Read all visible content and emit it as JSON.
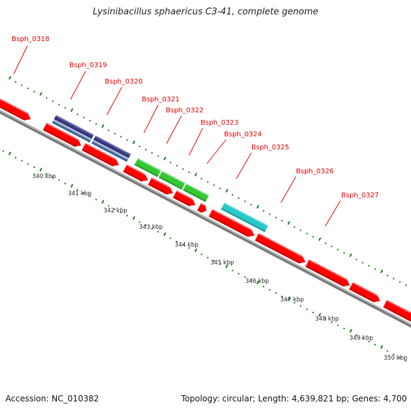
{
  "title": "Lysinibacillus sphaericus C3-41, complete genome",
  "footer": {
    "accession": "Accession: NC_010382",
    "summary": "Topology: circular; Length: 4,639,821 bp; Genes: 4,700"
  },
  "colors": {
    "cds": "#ff0000",
    "cds_dark": "#a00000",
    "track_purple": "#3c3c8c",
    "track_blue": "#5078b4",
    "track_green": "#32c832",
    "track_cyan": "#28c8c8",
    "backbone": "#777777",
    "ticks": "#1a7a1a",
    "label": "#e00000"
  },
  "gene_labels": [
    "Bsph_0318",
    "Bsph_0319",
    "Bsph_0320",
    "Bsph_0321",
    "Bsph_0322",
    "Bsph_0323",
    "Bsph_0324",
    "Bsph_0325",
    "Bsph_0326",
    "Bsph_0327"
  ],
  "kbp_labels": [
    "340 kbp",
    "341 kbp",
    "342 kbp",
    "343 kbp",
    "344 kbp",
    "345 kbp",
    "346 kbp",
    "347 kbp",
    "348 kbp",
    "349 kbp",
    "350 kbp"
  ]
}
